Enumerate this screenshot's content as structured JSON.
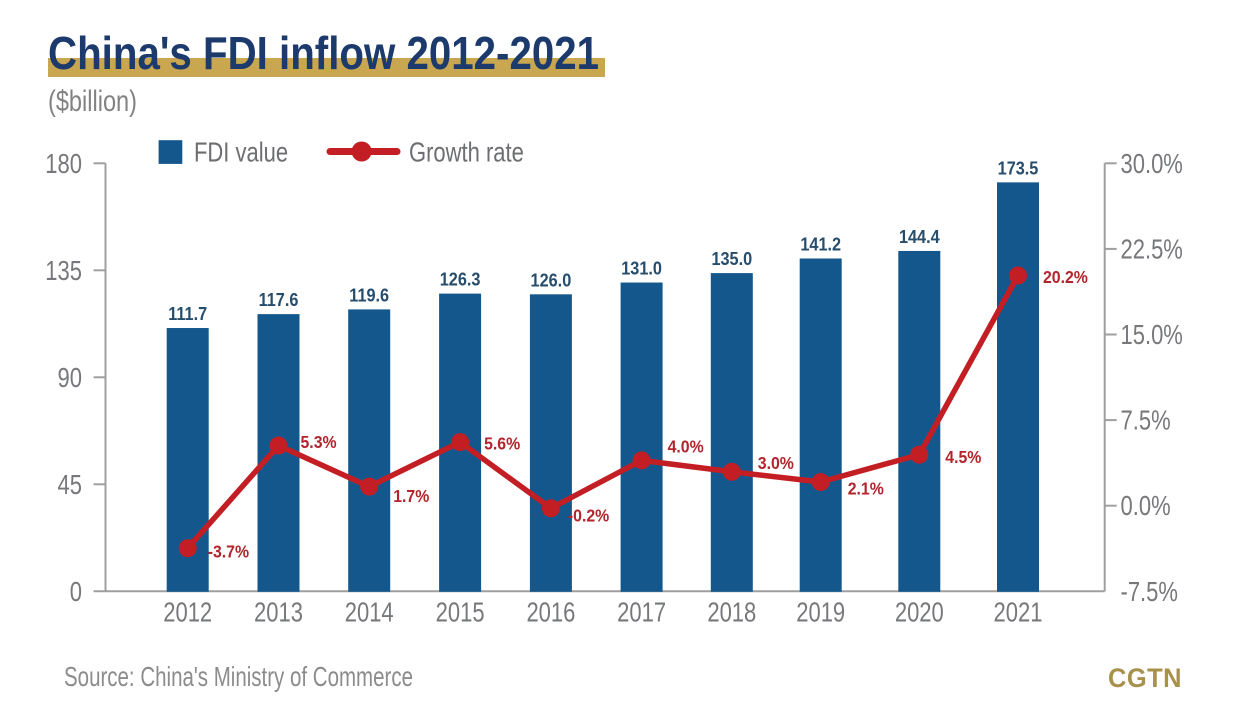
{
  "title": "China's FDI inflow 2012-2021",
  "subtitle": "($billion)",
  "source": "Source: China's Ministry of Commerce",
  "logo": {
    "text": "CGTN"
  },
  "legend": [
    {
      "label": "FDI value",
      "marker": "square"
    },
    {
      "label": "Growth rate",
      "marker": "line-dot"
    }
  ],
  "colors": {
    "title_navy": "#1c3a6c",
    "gold_bar": "#c8a750",
    "bar_blue": "#14578c",
    "value_label": "#264d6b",
    "line_red": "#c41e25",
    "red_label": "#b2252c",
    "axis_line": "#9f9f9f",
    "tick_label": "#77787b",
    "legend_text": "#6d6e71",
    "subtitle_gray": "#828282",
    "source_gray": "#8c8c8c",
    "logo_gold": "#a8924b"
  },
  "chart_data": {
    "type": "bar+line combo",
    "categories": [
      "2012",
      "2013",
      "2014",
      "2015",
      "2016",
      "2017",
      "2018",
      "2019",
      "2020",
      "2021"
    ],
    "series": [
      {
        "name": "FDI value",
        "type": "bar",
        "axis": "left",
        "values": [
          111.7,
          117.6,
          119.6,
          126.3,
          126.0,
          131.0,
          135.0,
          141.2,
          144.4,
          173.5
        ],
        "labels": [
          "111.7",
          "117.6",
          "119.6",
          "126.3",
          "126.0",
          "131.0",
          "135.0",
          "141.2",
          "144.4",
          "173.5"
        ]
      },
      {
        "name": "Growth rate",
        "type": "line",
        "axis": "right",
        "values": [
          -3.7,
          5.3,
          1.7,
          5.6,
          -0.2,
          4.0,
          3.0,
          2.1,
          4.5,
          20.2
        ],
        "labels": [
          "-3.7%",
          "5.3%",
          "1.7%",
          "5.6%",
          "-0.2%",
          "4.0%",
          "3.0%",
          "2.1%",
          "4.5%",
          "20.2%"
        ]
      }
    ],
    "left_axis": {
      "range": [
        0,
        180
      ],
      "tick_labels": [
        "180",
        "135",
        "90",
        "45",
        "0"
      ]
    },
    "right_axis": {
      "range": [
        -7.5,
        30
      ],
      "tick_labels": [
        "30.0%",
        "22.5%",
        "15.0%",
        "7.5%",
        "0.0%",
        "-7.5%"
      ]
    },
    "grid": false,
    "legend_position": "top-left"
  }
}
